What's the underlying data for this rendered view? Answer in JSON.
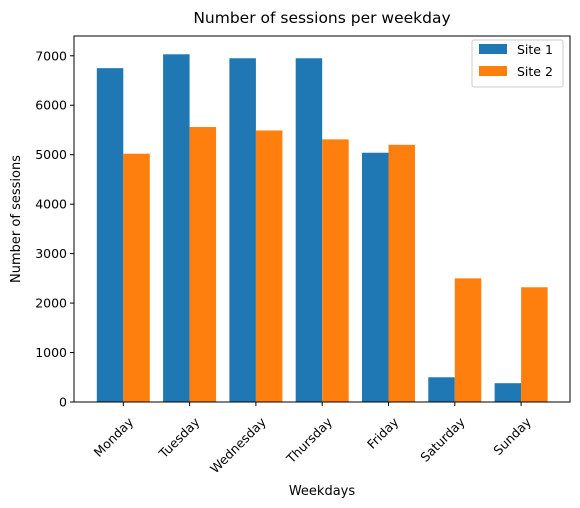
{
  "chart_data": {
    "type": "bar",
    "title": "Number of sessions per weekday",
    "xlabel": "Weekdays",
    "ylabel": "Number of sessions",
    "categories": [
      "Monday",
      "Tuesday",
      "Wednesday",
      "Thursday",
      "Friday",
      "Saturday",
      "Sunday"
    ],
    "series": [
      {
        "name": "Site 1",
        "color": "#1f77b4",
        "values": [
          6750,
          7030,
          6950,
          6950,
          5040,
          500,
          380
        ]
      },
      {
        "name": "Site 2",
        "color": "#ff7f0e",
        "values": [
          5020,
          5560,
          5490,
          5310,
          5200,
          2500,
          2320
        ]
      }
    ],
    "ylim": [
      0,
      7400
    ],
    "yticks": [
      0,
      1000,
      2000,
      3000,
      4000,
      5000,
      6000,
      7000
    ],
    "grid": false,
    "legend_position": "top-right"
  }
}
